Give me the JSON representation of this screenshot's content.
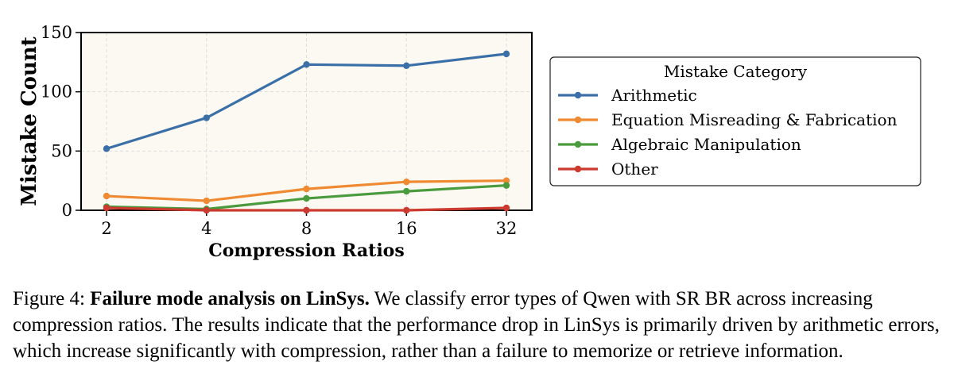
{
  "chart_data": {
    "type": "line",
    "x": [
      "2",
      "4",
      "8",
      "16",
      "32"
    ],
    "xlabel": "Compression Ratios",
    "ylabel": "Mistake Count",
    "ylim": [
      0,
      150
    ],
    "yticks": [
      0,
      50,
      100,
      150
    ],
    "grid": true,
    "legend": {
      "title": "Mistake Category",
      "placement": "outside-right"
    },
    "series": [
      {
        "name": "Arithmetic",
        "color": "#3a6fa8",
        "values": [
          52,
          78,
          123,
          122,
          132
        ]
      },
      {
        "name": "Equation Misreading & Fabrication",
        "color": "#ef8a32",
        "values": [
          12,
          8,
          18,
          24,
          25
        ]
      },
      {
        "name": "Algebraic Manipulation",
        "color": "#4a9a3e",
        "values": [
          3,
          1,
          10,
          16,
          21
        ]
      },
      {
        "name": "Other",
        "color": "#cc3a2f",
        "values": [
          2,
          0,
          0,
          0,
          2
        ]
      }
    ]
  },
  "caption": {
    "label": "Figure 4: ",
    "title": "Failure mode analysis on LinSys.",
    "text": " We classify error types of Qwen with SR BR across increasing compression ratios. The results indicate that the performance drop in LinSys is primarily driven by arithmetic errors, which increase significantly with compression, rather than a failure to memorize or retrieve information."
  }
}
